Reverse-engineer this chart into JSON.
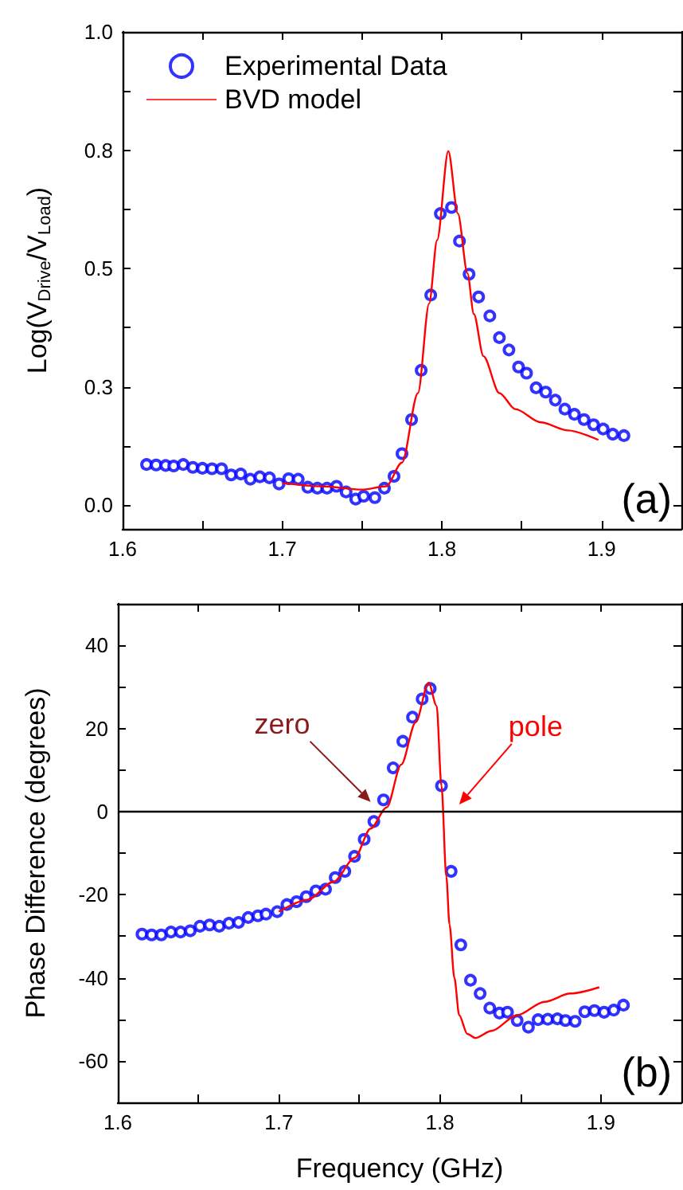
{
  "chart_data": [
    {
      "type": "scatter",
      "ylabel": "Log(V$_{Drive}$/V$_{Load}$)",
      "legend": "top left",
      "xlim": [
        1.6,
        1.95
      ],
      "ylim": [
        -0.05,
        1.0
      ],
      "xticks": [
        1.6,
        {
          "value": 1.65,
          "label": null
        },
        1.7,
        {
          "value": 1.75,
          "label": null
        },
        1.8,
        {
          "value": 1.85,
          "label": null
        },
        1.9
      ],
      "yticks": [
        {
          "value": 0,
          "label": "0.0"
        },
        {
          "value": 0.125,
          "label": null
        },
        {
          "value": 0.25,
          "label": "0.3"
        },
        {
          "value": 0.375,
          "label": null
        },
        {
          "value": 0.5,
          "label": "0.5"
        },
        {
          "value": 0.625,
          "label": null
        },
        {
          "value": 0.75,
          "label": "0.8"
        },
        {
          "value": 0.875,
          "label": null
        },
        {
          "value": 1.0,
          "label": "1.0"
        }
      ],
      "annotations": [
        "(a)"
      ],
      "series": [
        {
          "name": "Experimental Data",
          "marker": "circle",
          "color": "#0000ff",
          "x": [
            1.615,
            1.621,
            1.627,
            1.632,
            1.638,
            1.644,
            1.65,
            1.656,
            1.662,
            1.668,
            1.674,
            1.68,
            1.686,
            1.692,
            1.698,
            1.704,
            1.71,
            1.716,
            1.722,
            1.728,
            1.734,
            1.74,
            1.746,
            1.751,
            1.758,
            1.764,
            1.77,
            1.775,
            1.781,
            1.787,
            1.793,
            1.799,
            1.806,
            1.811,
            1.817,
            1.823,
            1.83,
            1.836,
            1.842,
            1.848,
            1.853,
            1.859,
            1.865,
            1.871,
            1.877,
            1.883,
            1.889,
            1.895,
            1.901,
            1.907,
            1.914
          ],
          "values": [
            0.086,
            0.085,
            0.084,
            0.083,
            0.086,
            0.08,
            0.078,
            0.077,
            0.077,
            0.064,
            0.066,
            0.055,
            0.06,
            0.058,
            0.045,
            0.056,
            0.055,
            0.038,
            0.036,
            0.036,
            0.04,
            0.028,
            0.013,
            0.019,
            0.016,
            0.036,
            0.061,
            0.109,
            0.181,
            0.285,
            0.444,
            0.616,
            0.629,
            0.558,
            0.488,
            0.44,
            0.4,
            0.354,
            0.328,
            0.292,
            0.279,
            0.248,
            0.239,
            0.222,
            0.203,
            0.192,
            0.181,
            0.17,
            0.161,
            0.15,
            0.147
          ]
        },
        {
          "name": "BVD model",
          "type": "line",
          "marker": "none",
          "color": "#ff0000",
          "x": [
            1.7,
            1.725,
            1.75,
            1.765,
            1.775,
            1.785,
            1.792,
            1.797,
            1.804,
            1.81,
            1.816,
            1.82,
            1.826,
            1.836,
            1.846,
            1.862,
            1.879,
            1.898
          ],
          "values": [
            0.047,
            0.04,
            0.033,
            0.04,
            0.09,
            0.237,
            0.426,
            0.56,
            0.748,
            0.616,
            0.49,
            0.404,
            0.315,
            0.237,
            0.203,
            0.175,
            0.158,
            0.138
          ]
        }
      ]
    },
    {
      "type": "scatter",
      "xlabel": "Frequency (GHz)",
      "ylabel": "Phase Difference (degrees)",
      "xlim": [
        1.6,
        1.95
      ],
      "ylim": [
        -70,
        50
      ],
      "xticks": [
        1.6,
        {
          "value": 1.65,
          "label": null
        },
        1.7,
        {
          "value": 1.75,
          "label": null
        },
        1.8,
        {
          "value": 1.85,
          "label": null
        },
        1.9
      ],
      "yticks": [
        -60,
        {
          "value": -50,
          "label": null
        },
        -40,
        {
          "value": -30,
          "label": null
        },
        -20,
        {
          "value": -10,
          "label": null
        },
        0,
        {
          "value": 10,
          "label": null
        },
        20,
        {
          "value": 30,
          "label": null
        },
        40
      ],
      "ref_lines": [
        {
          "axis": "y",
          "value": 0,
          "color": "#000000"
        }
      ],
      "annotations": [
        {
          "text": "zero",
          "x": 1.757,
          "y": 2.3
        },
        {
          "text": "pole",
          "x": 1.812,
          "y": 1.7
        },
        "(b)"
      ],
      "series": [
        {
          "marker": "circle",
          "color": "#0000ff",
          "x": [
            1.615,
            1.621,
            1.627,
            1.633,
            1.639,
            1.645,
            1.651,
            1.657,
            1.663,
            1.669,
            1.675,
            1.681,
            1.687,
            1.692,
            1.699,
            1.705,
            1.711,
            1.717,
            1.723,
            1.729,
            1.735,
            1.741,
            1.747,
            1.753,
            1.759,
            1.765,
            1.771,
            1.777,
            1.783,
            1.789,
            1.794,
            1.801,
            1.807,
            1.813,
            1.819,
            1.825,
            1.831,
            1.837,
            1.842,
            1.848,
            1.855,
            1.861,
            1.867,
            1.873,
            1.878,
            1.884,
            1.89,
            1.896,
            1.902,
            1.908,
            1.914
          ],
          "values": [
            -29.5,
            -29.7,
            -29.7,
            -29.0,
            -29.0,
            -28.7,
            -27.6,
            -27.3,
            -27.6,
            -26.9,
            -26.7,
            -25.5,
            -25.1,
            -24.7,
            -24.1,
            -22.4,
            -21.7,
            -20.5,
            -19.1,
            -18.7,
            -15.9,
            -14.4,
            -10.8,
            -6.7,
            -2.4,
            2.8,
            10.5,
            16.9,
            22.7,
            27.1,
            29.6,
            6.2,
            -14.4,
            -32.1,
            -40.6,
            -43.8,
            -47.3,
            -48.5,
            -48.3,
            -50.3,
            -51.9,
            -50.1,
            -50.0,
            -49.9,
            -50.3,
            -50.5,
            -48.2,
            -47.9,
            -48.3,
            -47.8,
            -46.6
          ]
        },
        {
          "type": "line",
          "marker": "none",
          "color": "#ff0000",
          "x": [
            1.7,
            1.718,
            1.734,
            1.747,
            1.757,
            1.767,
            1.776,
            1.785,
            1.793,
            1.798,
            1.801,
            1.804,
            1.806,
            1.809,
            1.812,
            1.817,
            1.822,
            1.832,
            1.848,
            1.865,
            1.881,
            1.899
          ],
          "values": [
            -24.1,
            -21.2,
            -16.9,
            -11.2,
            -4.1,
            1.0,
            11.3,
            21.5,
            31.0,
            25.4,
            6.2,
            -15.6,
            -27.2,
            -40.0,
            -49.0,
            -53.5,
            -54.5,
            -52.8,
            -49.0,
            -45.8,
            -43.8,
            -42.3
          ]
        }
      ]
    }
  ]
}
